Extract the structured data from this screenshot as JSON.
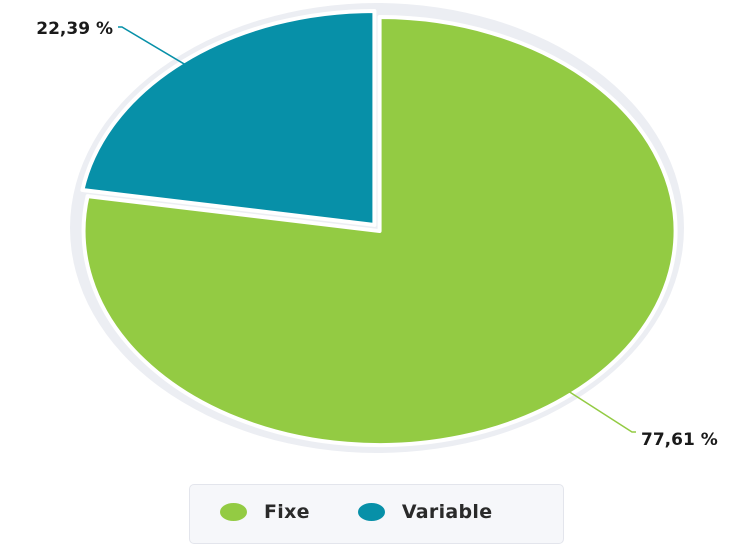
{
  "chart_data": {
    "type": "pie",
    "slices": [
      {
        "name": "Fixe",
        "value": 77.61,
        "label": "77,61 %",
        "color": "#93cb43"
      },
      {
        "name": "Variable",
        "value": 22.39,
        "label": "22,39 %",
        "color": "#0790a8"
      }
    ],
    "legend_placement": "bottom-center"
  },
  "legend": {
    "items": [
      {
        "label": "Fixe",
        "color": "#93cb43"
      },
      {
        "label": "Variable",
        "color": "#0790a8"
      }
    ]
  }
}
